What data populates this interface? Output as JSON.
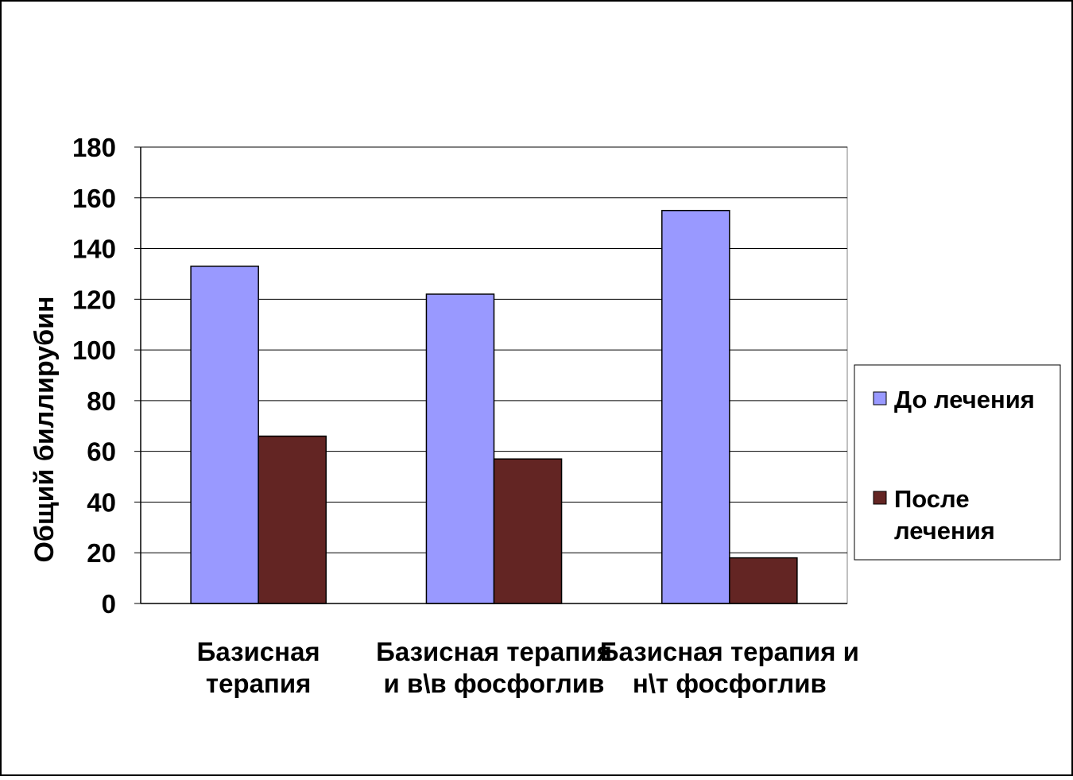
{
  "chart_data": {
    "type": "bar",
    "title": "",
    "xlabel": "",
    "ylabel": "Общий биллирубин",
    "ylim": [
      0,
      180
    ],
    "yticks": [
      0,
      20,
      40,
      60,
      80,
      100,
      120,
      140,
      160,
      180
    ],
    "grid": true,
    "legend_position": "right",
    "categories": [
      [
        "Базисная",
        "терапия"
      ],
      [
        "Базисная терапия",
        "и в\\в фосфоглив"
      ],
      [
        "Базисная терапия и",
        "н\\т фосфоглив"
      ]
    ],
    "series": [
      {
        "name": "До лечения",
        "legend_lines": [
          "До лечения"
        ],
        "color": "#9999ff",
        "values": [
          133,
          122,
          155
        ]
      },
      {
        "name": "После лечения",
        "legend_lines": [
          "После",
          "лечения"
        ],
        "color": "#632523",
        "values": [
          66,
          57,
          18
        ]
      }
    ]
  }
}
